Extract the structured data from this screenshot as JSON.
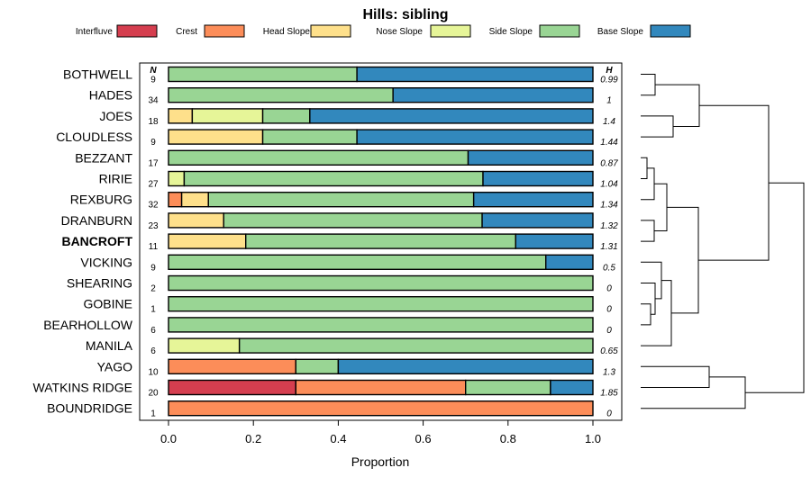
{
  "chart_data": {
    "type": "bar",
    "stacked": true,
    "orientation": "horizontal",
    "title": "Hills: sibling",
    "xlabel": "Proportion",
    "xlim": [
      0,
      1
    ],
    "xticks": [
      "0.0",
      "0.2",
      "0.4",
      "0.6",
      "0.8",
      "1.0"
    ],
    "n_header": "N",
    "h_header": "H",
    "highlighted": "BANCROFT",
    "legend": [
      {
        "name": "Interfluve",
        "color": "#d53e4f"
      },
      {
        "name": "Crest",
        "color": "#fc8d59"
      },
      {
        "name": "Head Slope",
        "color": "#fee08b"
      },
      {
        "name": "Nose Slope",
        "color": "#e6f598"
      },
      {
        "name": "Side Slope",
        "color": "#99d594"
      },
      {
        "name": "Base Slope",
        "color": "#3288bd"
      }
    ],
    "rows": [
      {
        "name": "BOTHWELL",
        "n": "9",
        "h": "0.99",
        "values": [
          0,
          0,
          0,
          0,
          0.444,
          0.556
        ]
      },
      {
        "name": "HADES",
        "n": "34",
        "h": "1",
        "values": [
          0,
          0,
          0,
          0,
          0.529,
          0.471
        ]
      },
      {
        "name": "JOES",
        "n": "18",
        "h": "1.4",
        "values": [
          0,
          0,
          0.056,
          0.166,
          0.111,
          0.667
        ]
      },
      {
        "name": "CLOUDLESS",
        "n": "9",
        "h": "1.44",
        "values": [
          0,
          0,
          0.222,
          0,
          0.222,
          0.556
        ]
      },
      {
        "name": "BEZZANT",
        "n": "17",
        "h": "0.87",
        "values": [
          0,
          0,
          0,
          0,
          0.706,
          0.294
        ]
      },
      {
        "name": "RIRIE",
        "n": "27",
        "h": "1.04",
        "values": [
          0,
          0,
          0,
          0.037,
          0.704,
          0.259
        ]
      },
      {
        "name": "REXBURG",
        "n": "32",
        "h": "1.34",
        "values": [
          0,
          0.031,
          0.063,
          0,
          0.625,
          0.281
        ]
      },
      {
        "name": "DRANBURN",
        "n": "23",
        "h": "1.32",
        "values": [
          0,
          0,
          0.13,
          0,
          0.609,
          0.261
        ]
      },
      {
        "name": "BANCROFT",
        "n": "11",
        "h": "1.31",
        "values": [
          0,
          0,
          0.182,
          0,
          0.636,
          0.182
        ]
      },
      {
        "name": "VICKING",
        "n": "9",
        "h": "0.5",
        "values": [
          0,
          0,
          0,
          0,
          0.889,
          0.111
        ]
      },
      {
        "name": "SHEARING",
        "n": "2",
        "h": "0",
        "values": [
          0,
          0,
          0,
          0,
          1,
          0
        ]
      },
      {
        "name": "GOBINE",
        "n": "1",
        "h": "0",
        "values": [
          0,
          0,
          0,
          0,
          1,
          0
        ]
      },
      {
        "name": "BEARHOLLOW",
        "n": "6",
        "h": "0",
        "values": [
          0,
          0,
          0,
          0,
          1,
          0
        ]
      },
      {
        "name": "MANILA",
        "n": "6",
        "h": "0.65",
        "values": [
          0,
          0,
          0,
          0.167,
          0.833,
          0
        ]
      },
      {
        "name": "YAGO",
        "n": "10",
        "h": "1.3",
        "values": [
          0,
          0.3,
          0,
          0,
          0.1,
          0.6
        ]
      },
      {
        "name": "WATKINS RIDGE",
        "n": "20",
        "h": "1.85",
        "values": [
          0.3,
          0.4,
          0,
          0,
          0.2,
          0.1
        ]
      },
      {
        "name": "BOUNDRIDGE",
        "n": "1",
        "h": "0",
        "values": [
          0,
          1,
          0,
          0,
          0,
          0
        ]
      }
    ]
  }
}
